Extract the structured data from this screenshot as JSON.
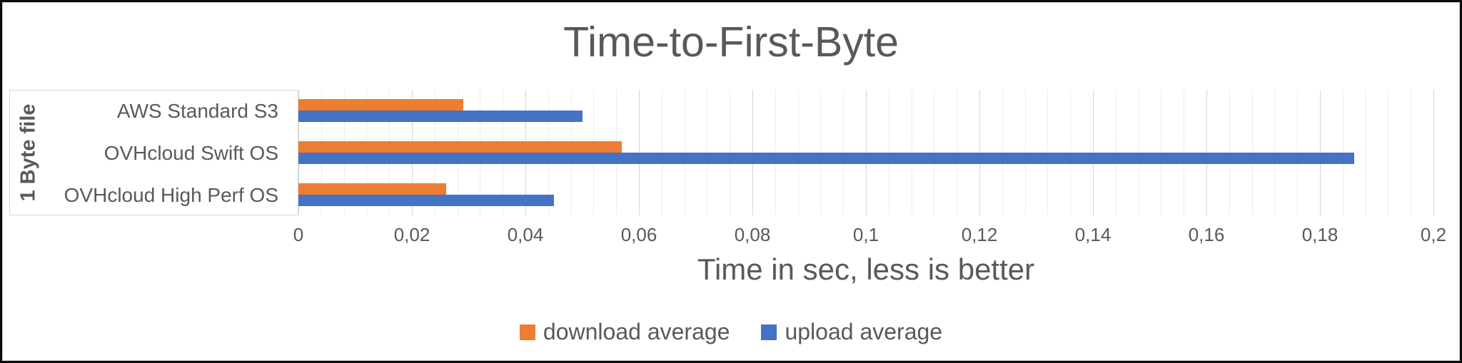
{
  "chart_data": {
    "type": "bar",
    "orientation": "horizontal",
    "title": "Time-to-First-Byte",
    "axis_group_label": "1 Byte file",
    "categories": [
      "AWS Standard S3",
      "OVHcloud Swift OS",
      "OVHcloud High Perf OS"
    ],
    "series": [
      {
        "name": "download average",
        "color": "#ED7D31",
        "values": [
          0.029,
          0.057,
          0.026
        ]
      },
      {
        "name": "upload average",
        "color": "#4472C4",
        "values": [
          0.05,
          0.186,
          0.045
        ]
      }
    ],
    "xlabel": "Time in sec, less is better",
    "xlim": [
      0,
      0.2
    ],
    "x_major_tick_step": 0.02,
    "x_minor_grid_step": 0.004,
    "x_tick_labels": [
      "0",
      "0,02",
      "0,04",
      "0,06",
      "0,08",
      "0,1",
      "0,12",
      "0,14",
      "0,16",
      "0,18",
      "0,2"
    ],
    "decimal_separator": ",",
    "grid": "vertical, minor + major",
    "legend_position": "bottom-center"
  },
  "colors": {
    "text": "#595959",
    "grid_minor": "#ECECEC",
    "grid_major": "#D6D6D6",
    "frame_border": "#0B0B0B",
    "category_box_border": "#D9D9D9",
    "background": "#FFFFFF",
    "series_download": "#ED7D31",
    "series_upload": "#4472C4"
  }
}
